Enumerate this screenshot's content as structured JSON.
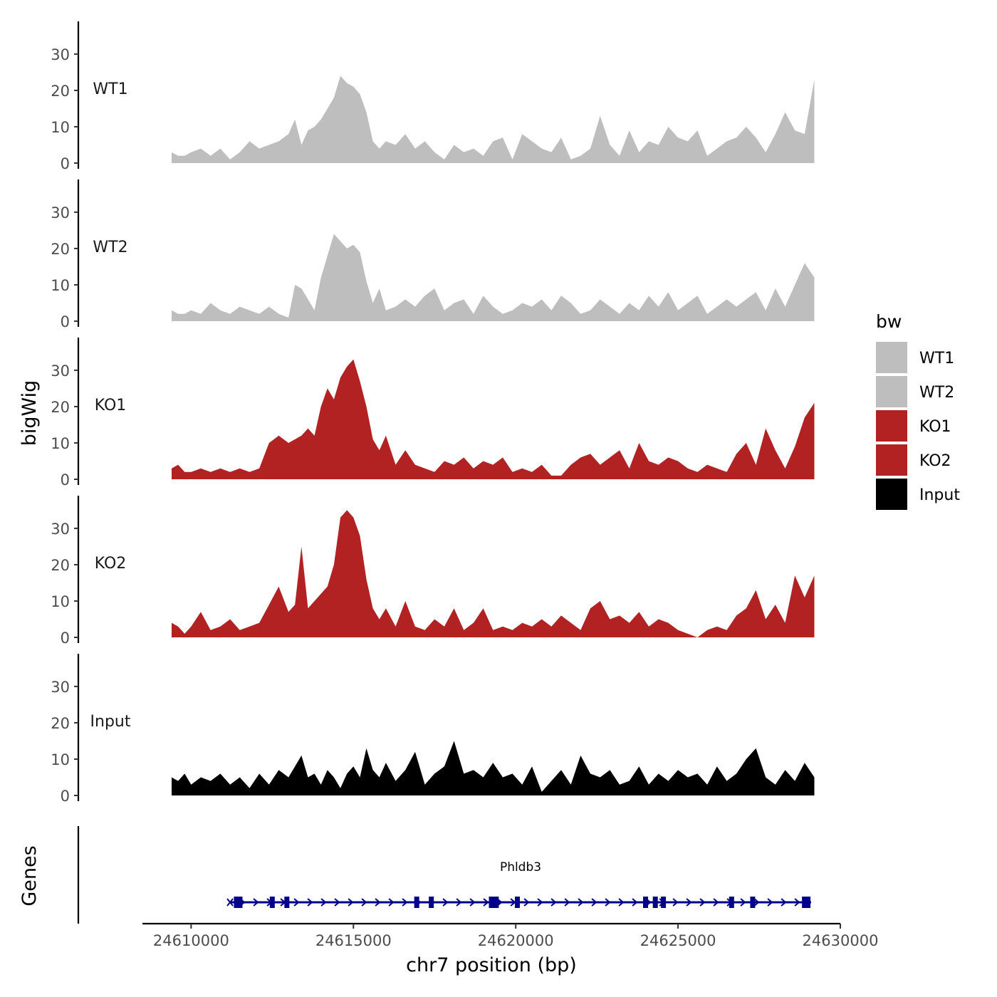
{
  "chart_data": {
    "type": "area",
    "y_axis_title": "bigWig",
    "genes_axis_title": "Genes",
    "x_axis_title": "chr7 position (bp)",
    "x_range": [
      24608500,
      24630000
    ],
    "x_ticks": [
      24610000,
      24615000,
      24620000,
      24625000,
      24630000
    ],
    "x_tick_labels": [
      "24610000",
      "24615000",
      "24620000",
      "24625000",
      "24630000"
    ],
    "y_range": [
      0,
      39
    ],
    "y_ticks": [
      0,
      10,
      20,
      30
    ],
    "y_tick_labels": [
      "0",
      "10",
      "20",
      "30"
    ],
    "legend": {
      "title": "bw",
      "position": "right",
      "items": [
        {
          "label": "WT1",
          "color": "#bebebe"
        },
        {
          "label": "WT2",
          "color": "#bebebe"
        },
        {
          "label": "KO1",
          "color": "#b22222"
        },
        {
          "label": "KO2",
          "color": "#b22222"
        },
        {
          "label": "Input",
          "color": "#000000"
        }
      ]
    },
    "tracks": [
      {
        "name": "WT1",
        "color": "#bebebe",
        "x": [
          24609400,
          24609600,
          24609800,
          24610000,
          24610300,
          24610600,
          24610900,
          24611200,
          24611500,
          24611800,
          24612100,
          24612400,
          24612700,
          24613000,
          24613200,
          24613400,
          24613600,
          24613800,
          24614000,
          24614200,
          24614400,
          24614600,
          24614800,
          24615000,
          24615200,
          24615400,
          24615600,
          24615800,
          24616000,
          24616300,
          24616600,
          24616900,
          24617200,
          24617500,
          24617800,
          24618100,
          24618400,
          24618700,
          24619000,
          24619300,
          24619600,
          24619900,
          24620200,
          24620500,
          24620800,
          24621100,
          24621400,
          24621700,
          24622000,
          24622300,
          24622600,
          24622900,
          24623200,
          24623500,
          24623800,
          24624100,
          24624400,
          24624700,
          24625000,
          24625300,
          24625600,
          24625900,
          24626200,
          24626500,
          24626800,
          24627100,
          24627400,
          24627700,
          24628000,
          24628300,
          24628600,
          24628900,
          24629200
        ],
        "y": [
          3,
          2,
          2,
          3,
          4,
          2,
          4,
          1,
          3,
          6,
          4,
          5,
          6,
          8,
          12,
          5,
          9,
          10,
          12,
          15,
          18,
          24,
          22,
          21,
          19,
          14,
          6,
          4,
          6,
          5,
          8,
          4,
          6,
          3,
          1,
          5,
          3,
          4,
          2,
          6,
          7,
          1,
          8,
          6,
          4,
          3,
          7,
          1,
          2,
          4,
          13,
          5,
          2,
          9,
          3,
          6,
          5,
          10,
          7,
          6,
          9,
          2,
          4,
          6,
          7,
          10,
          7,
          3,
          8,
          14,
          9,
          8,
          23
        ]
      },
      {
        "name": "WT2",
        "color": "#bebebe",
        "x": [
          24609400,
          24609600,
          24609800,
          24610000,
          24610300,
          24610600,
          24610900,
          24611200,
          24611500,
          24611800,
          24612100,
          24612400,
          24612700,
          24613000,
          24613200,
          24613400,
          24613600,
          24613800,
          24614000,
          24614200,
          24614400,
          24614600,
          24614800,
          24615000,
          24615200,
          24615400,
          24615600,
          24615800,
          24616000,
          24616300,
          24616600,
          24616900,
          24617200,
          24617500,
          24617800,
          24618100,
          24618400,
          24618700,
          24619000,
          24619300,
          24619600,
          24619900,
          24620200,
          24620500,
          24620800,
          24621100,
          24621400,
          24621700,
          24622000,
          24622300,
          24622600,
          24622900,
          24623200,
          24623500,
          24623800,
          24624100,
          24624400,
          24624700,
          24625000,
          24625300,
          24625600,
          24625900,
          24626200,
          24626500,
          24626800,
          24627100,
          24627400,
          24627700,
          24628000,
          24628300,
          24628600,
          24628900,
          24629200
        ],
        "y": [
          3,
          2,
          2,
          3,
          2,
          5,
          3,
          2,
          4,
          3,
          2,
          4,
          2,
          1,
          10,
          9,
          6,
          3,
          12,
          18,
          24,
          22,
          20,
          21,
          19,
          11,
          5,
          9,
          3,
          4,
          6,
          4,
          7,
          9,
          3,
          5,
          6,
          2,
          7,
          4,
          2,
          3,
          5,
          4,
          6,
          3,
          7,
          5,
          2,
          3,
          6,
          4,
          2,
          5,
          3,
          7,
          4,
          8,
          3,
          5,
          7,
          2,
          4,
          6,
          4,
          6,
          8,
          3,
          9,
          4,
          10,
          16,
          12
        ]
      },
      {
        "name": "KO1",
        "color": "#b22222",
        "x": [
          24609400,
          24609600,
          24609800,
          24610000,
          24610300,
          24610600,
          24610900,
          24611200,
          24611500,
          24611800,
          24612100,
          24612400,
          24612700,
          24613000,
          24613200,
          24613400,
          24613600,
          24613800,
          24614000,
          24614200,
          24614400,
          24614600,
          24614800,
          24615000,
          24615200,
          24615400,
          24615600,
          24615800,
          24616000,
          24616300,
          24616600,
          24616900,
          24617200,
          24617500,
          24617800,
          24618100,
          24618400,
          24618700,
          24619000,
          24619300,
          24619600,
          24619900,
          24620200,
          24620500,
          24620800,
          24621100,
          24621400,
          24621700,
          24622000,
          24622300,
          24622600,
          24622900,
          24623200,
          24623500,
          24623800,
          24624100,
          24624400,
          24624700,
          24625000,
          24625300,
          24625600,
          24625900,
          24626200,
          24626500,
          24626800,
          24627100,
          24627400,
          24627700,
          24628000,
          24628300,
          24628600,
          24628900,
          24629200
        ],
        "y": [
          3,
          4,
          2,
          2,
          3,
          2,
          3,
          2,
          3,
          2,
          3,
          10,
          12,
          10,
          11,
          12,
          14,
          12,
          20,
          25,
          22,
          28,
          31,
          33,
          27,
          20,
          11,
          8,
          12,
          4,
          8,
          4,
          3,
          2,
          5,
          4,
          6,
          3,
          5,
          4,
          6,
          2,
          3,
          2,
          4,
          1,
          1,
          4,
          6,
          7,
          4,
          6,
          8,
          3,
          10,
          5,
          4,
          6,
          5,
          3,
          2,
          4,
          3,
          2,
          7,
          10,
          4,
          14,
          8,
          3,
          9,
          17,
          21
        ]
      },
      {
        "name": "KO2",
        "color": "#b22222",
        "x": [
          24609400,
          24609600,
          24609800,
          24610000,
          24610300,
          24610600,
          24610900,
          24611200,
          24611500,
          24611800,
          24612100,
          24612400,
          24612700,
          24613000,
          24613200,
          24613400,
          24613600,
          24613800,
          24614000,
          24614200,
          24614400,
          24614600,
          24614800,
          24615000,
          24615200,
          24615400,
          24615600,
          24615800,
          24616000,
          24616300,
          24616600,
          24616900,
          24617200,
          24617500,
          24617800,
          24618100,
          24618400,
          24618700,
          24619000,
          24619300,
          24619600,
          24619900,
          24620200,
          24620500,
          24620800,
          24621100,
          24621400,
          24621700,
          24622000,
          24622300,
          24622600,
          24622900,
          24623200,
          24623500,
          24623800,
          24624100,
          24624400,
          24624700,
          24625000,
          24625300,
          24625600,
          24625900,
          24626200,
          24626500,
          24626800,
          24627100,
          24627400,
          24627700,
          24628000,
          24628300,
          24628600,
          24628900,
          24629200
        ],
        "y": [
          4,
          3,
          1,
          3,
          7,
          2,
          3,
          5,
          2,
          3,
          4,
          9,
          14,
          7,
          9,
          25,
          8,
          10,
          12,
          14,
          20,
          33,
          35,
          33,
          28,
          16,
          8,
          5,
          8,
          3,
          10,
          3,
          2,
          5,
          3,
          8,
          2,
          4,
          8,
          2,
          3,
          2,
          4,
          3,
          5,
          3,
          6,
          4,
          2,
          8,
          10,
          5,
          6,
          4,
          7,
          3,
          5,
          4,
          2,
          1,
          0,
          2,
          3,
          2,
          6,
          8,
          13,
          5,
          9,
          4,
          17,
          11,
          17
        ]
      },
      {
        "name": "Input",
        "color": "#000000",
        "x": [
          24609400,
          24609600,
          24609800,
          24610000,
          24610300,
          24610600,
          24610900,
          24611200,
          24611500,
          24611800,
          24612100,
          24612400,
          24612700,
          24613000,
          24613200,
          24613400,
          24613600,
          24613800,
          24614000,
          24614200,
          24614400,
          24614600,
          24614800,
          24615000,
          24615200,
          24615400,
          24615600,
          24615800,
          24616000,
          24616300,
          24616600,
          24616900,
          24617200,
          24617500,
          24617800,
          24618100,
          24618400,
          24618700,
          24619000,
          24619300,
          24619600,
          24619900,
          24620200,
          24620500,
          24620800,
          24621100,
          24621400,
          24621700,
          24622000,
          24622300,
          24622600,
          24622900,
          24623200,
          24623500,
          24623800,
          24624100,
          24624400,
          24624700,
          24625000,
          24625300,
          24625600,
          24625900,
          24626200,
          24626500,
          24626800,
          24627100,
          24627400,
          24627700,
          24628000,
          24628300,
          24628600,
          24628900,
          24629200
        ],
        "y": [
          5,
          4,
          6,
          3,
          5,
          4,
          6,
          3,
          5,
          2,
          6,
          3,
          7,
          5,
          8,
          11,
          5,
          6,
          3,
          7,
          5,
          2,
          6,
          8,
          5,
          13,
          7,
          5,
          9,
          4,
          7,
          12,
          3,
          6,
          8,
          15,
          6,
          7,
          5,
          9,
          5,
          6,
          3,
          8,
          1,
          4,
          7,
          3,
          11,
          6,
          5,
          7,
          3,
          4,
          8,
          3,
          6,
          4,
          7,
          5,
          6,
          3,
          8,
          4,
          6,
          10,
          13,
          5,
          3,
          7,
          4,
          9,
          5
        ]
      }
    ],
    "genes": {
      "label": "Phldb3",
      "color": "#00008b",
      "start": 24611200,
      "end": 24629100,
      "strand": "+",
      "exons": [
        24611450,
        24612500,
        24612950,
        24616950,
        24617400,
        24619250,
        24619400,
        24620050,
        24624000,
        24624300,
        24624550,
        24626650,
        24627300,
        24628950
      ]
    }
  }
}
